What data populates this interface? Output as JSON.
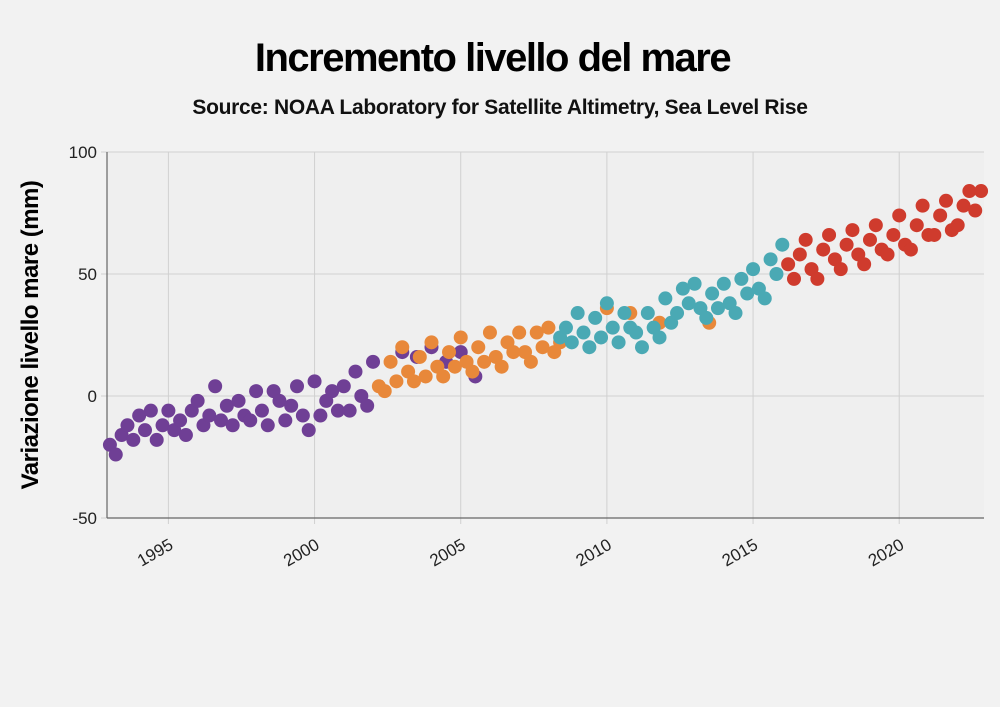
{
  "header": {
    "title": "Incremento livello del mare",
    "subtitle": "Source: NOAA Laboratory for Satellite Altimetry, Sea Level Rise"
  },
  "colors": {
    "background": "#f2f2f2",
    "plot_background": "#efefef",
    "grid": "#d0d0d0",
    "axis": "#666666"
  },
  "chart_data": {
    "type": "scatter",
    "title": "Incremento livello del mare",
    "subtitle": "Source: NOAA Laboratory for Satellite Altimetry, Sea Level Rise",
    "xlabel": "",
    "ylabel": "Variazione livello mare (mm)",
    "xlim": [
      1992.9,
      2022.9
    ],
    "ylim": [
      -50,
      100
    ],
    "xticks": [
      1995,
      2000,
      2005,
      2010,
      2015,
      2020
    ],
    "yticks": [
      -50,
      0,
      50,
      100
    ],
    "grid": true,
    "legend": "none",
    "series": [
      {
        "color": "#6f3f95",
        "x": [
          1993.0,
          1993.2,
          1993.4,
          1993.6,
          1993.8,
          1994.0,
          1994.2,
          1994.4,
          1994.6,
          1994.8,
          1995.0,
          1995.2,
          1995.4,
          1995.6,
          1995.8,
          1996.0,
          1996.2,
          1996.4,
          1996.6,
          1996.8,
          1997.0,
          1997.2,
          1997.4,
          1997.6,
          1997.8,
          1998.0,
          1998.2,
          1998.4,
          1998.6,
          1998.8,
          1999.0,
          1999.2,
          1999.4,
          1999.6,
          1999.8,
          2000.0,
          2000.2,
          2000.4,
          2000.6,
          2000.8,
          2001.0,
          2001.2,
          2001.4,
          2001.6,
          2001.8,
          2002.0,
          2003.0,
          2003.5,
          2004.0,
          2004.5,
          2005.0,
          2005.5
        ],
        "y": [
          -20,
          -24,
          -16,
          -12,
          -18,
          -8,
          -14,
          -6,
          -18,
          -12,
          -6,
          -14,
          -10,
          -16,
          -6,
          -2,
          -12,
          -8,
          4,
          -10,
          -4,
          -12,
          -2,
          -8,
          -10,
          2,
          -6,
          -12,
          2,
          -2,
          -10,
          -4,
          4,
          -8,
          -14,
          6,
          -8,
          -2,
          2,
          -6,
          4,
          -6,
          10,
          0,
          -4,
          14,
          18,
          16,
          20,
          14,
          18,
          8
        ]
      },
      {
        "color": "#e8883a",
        "x": [
          2002.2,
          2002.4,
          2002.6,
          2002.8,
          2003.0,
          2003.2,
          2003.4,
          2003.6,
          2003.8,
          2004.0,
          2004.2,
          2004.4,
          2004.6,
          2004.8,
          2005.0,
          2005.2,
          2005.4,
          2005.6,
          2005.8,
          2006.0,
          2006.2,
          2006.4,
          2006.6,
          2006.8,
          2007.0,
          2007.2,
          2007.4,
          2007.6,
          2007.8,
          2008.0,
          2008.2,
          2008.4,
          2010.0,
          2010.8,
          2011.8,
          2013.5
        ],
        "y": [
          4,
          2,
          14,
          6,
          20,
          10,
          6,
          16,
          8,
          22,
          12,
          8,
          18,
          12,
          24,
          14,
          10,
          20,
          14,
          26,
          16,
          12,
          22,
          18,
          26,
          18,
          14,
          26,
          20,
          28,
          18,
          22,
          36,
          34,
          30,
          30
        ]
      },
      {
        "color": "#4aa9b4",
        "x": [
          2008.4,
          2008.6,
          2008.8,
          2009.0,
          2009.2,
          2009.4,
          2009.6,
          2009.8,
          2010.0,
          2010.2,
          2010.4,
          2010.6,
          2010.8,
          2011.0,
          2011.2,
          2011.4,
          2011.6,
          2011.8,
          2012.0,
          2012.2,
          2012.4,
          2012.6,
          2012.8,
          2013.0,
          2013.2,
          2013.4,
          2013.6,
          2013.8,
          2014.0,
          2014.2,
          2014.4,
          2014.6,
          2014.8,
          2015.0,
          2015.2,
          2015.4,
          2015.6,
          2015.8,
          2016.0
        ],
        "y": [
          24,
          28,
          22,
          34,
          26,
          20,
          32,
          24,
          38,
          28,
          22,
          34,
          28,
          26,
          20,
          34,
          28,
          24,
          40,
          30,
          34,
          44,
          38,
          46,
          36,
          32,
          42,
          36,
          46,
          38,
          34,
          48,
          42,
          52,
          44,
          40,
          56,
          50,
          62
        ]
      },
      {
        "color": "#cf3b2d",
        "x": [
          2016.2,
          2016.4,
          2016.6,
          2016.8,
          2017.0,
          2017.2,
          2017.4,
          2017.6,
          2017.8,
          2018.0,
          2018.2,
          2018.4,
          2018.6,
          2018.8,
          2019.0,
          2019.2,
          2019.4,
          2019.6,
          2019.8,
          2020.0,
          2020.2,
          2020.4,
          2020.6,
          2020.8,
          2021.0,
          2021.2,
          2021.4,
          2021.6,
          2021.8,
          2022.0,
          2022.2,
          2022.4,
          2022.6,
          2022.8
        ],
        "y": [
          54,
          48,
          58,
          64,
          52,
          48,
          60,
          66,
          56,
          52,
          62,
          68,
          58,
          54,
          64,
          70,
          60,
          58,
          66,
          74,
          62,
          60,
          70,
          78,
          66,
          66,
          74,
          80,
          68,
          70,
          78,
          84,
          76,
          84
        ]
      }
    ]
  }
}
